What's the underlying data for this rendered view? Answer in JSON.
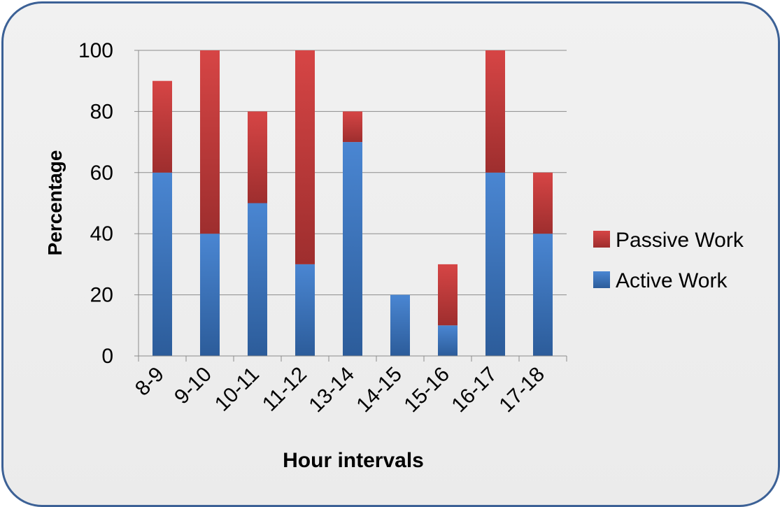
{
  "colors": {
    "active": "#3a74c0",
    "passive": "#c0393b",
    "border": "#3c6196"
  },
  "chart_data": {
    "type": "bar",
    "stacked": true,
    "categories": [
      "8-9",
      "9-10",
      "10-11",
      "11-12",
      "13-14",
      "14-15",
      "15-16",
      "16-17",
      "17-18"
    ],
    "series": [
      {
        "name": "Active Work",
        "values": [
          60,
          40,
          50,
          30,
          70,
          20,
          10,
          60,
          40
        ]
      },
      {
        "name": "Passive Work",
        "values": [
          30,
          60,
          30,
          70,
          10,
          0,
          20,
          40,
          20
        ]
      }
    ],
    "xlabel": "Hour intervals",
    "ylabel": "Percentage",
    "ylim": [
      0,
      100
    ],
    "yticks": [
      0,
      20,
      40,
      60,
      80,
      100
    ],
    "grid": true,
    "legend": [
      "Passive Work",
      "Active Work"
    ],
    "legend_position": "right"
  }
}
